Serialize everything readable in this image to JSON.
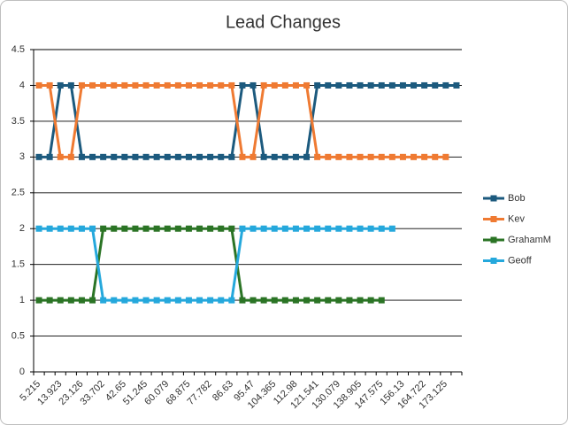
{
  "chart_data": {
    "type": "line",
    "title": "Lead Changes",
    "categories": [
      "5.215",
      null,
      "13.923",
      null,
      "23.126",
      null,
      "33.702",
      null,
      "42.65",
      null,
      "51.245",
      null,
      "60.079",
      null,
      "68.875",
      null,
      "77.782",
      null,
      "86.63",
      null,
      "95.47",
      null,
      "104.365",
      null,
      "112.98",
      null,
      "121.541",
      null,
      "130.079",
      null,
      "138.905",
      null,
      "147.575",
      null,
      "156.13",
      null,
      "164.722",
      null,
      "173.125",
      null
    ],
    "series": [
      {
        "name": "Bob",
        "color": "#1c5a7e",
        "values": [
          3,
          3,
          4,
          4,
          3,
          3,
          3,
          3,
          3,
          3,
          3,
          3,
          3,
          3,
          3,
          3,
          3,
          3,
          3,
          4,
          4,
          3,
          3,
          3,
          3,
          3,
          4,
          4,
          4,
          4,
          4,
          4,
          4,
          4,
          4,
          4,
          4,
          4,
          4,
          4
        ]
      },
      {
        "name": "Kev",
        "color": "#ef7a32",
        "values": [
          4,
          4,
          3,
          3,
          4,
          4,
          4,
          4,
          4,
          4,
          4,
          4,
          4,
          4,
          4,
          4,
          4,
          4,
          4,
          3,
          3,
          4,
          4,
          4,
          4,
          4,
          3,
          3,
          3,
          3,
          3,
          3,
          3,
          3,
          3,
          3,
          3,
          3,
          3,
          null
        ]
      },
      {
        "name": "GrahamM",
        "color": "#2b7425",
        "values": [
          1,
          1,
          1,
          1,
          1,
          1,
          2,
          2,
          2,
          2,
          2,
          2,
          2,
          2,
          2,
          2,
          2,
          2,
          2,
          1,
          1,
          1,
          1,
          1,
          1,
          1,
          1,
          1,
          1,
          1,
          1,
          1,
          1,
          null,
          null,
          null,
          null,
          null,
          null,
          null
        ]
      },
      {
        "name": "Geoff",
        "color": "#25a8dc",
        "values": [
          2,
          2,
          2,
          2,
          2,
          2,
          1,
          1,
          1,
          1,
          1,
          1,
          1,
          1,
          1,
          1,
          1,
          1,
          1,
          2,
          2,
          2,
          2,
          2,
          2,
          2,
          2,
          2,
          2,
          2,
          2,
          2,
          2,
          2,
          null,
          null,
          null,
          null,
          null,
          null
        ]
      }
    ],
    "ylim": [
      0,
      4.5
    ],
    "yticks": [
      0,
      0.5,
      1,
      1.5,
      2,
      2.5,
      3,
      3.5,
      4,
      4.5
    ],
    "grid": true,
    "legend": "right"
  }
}
